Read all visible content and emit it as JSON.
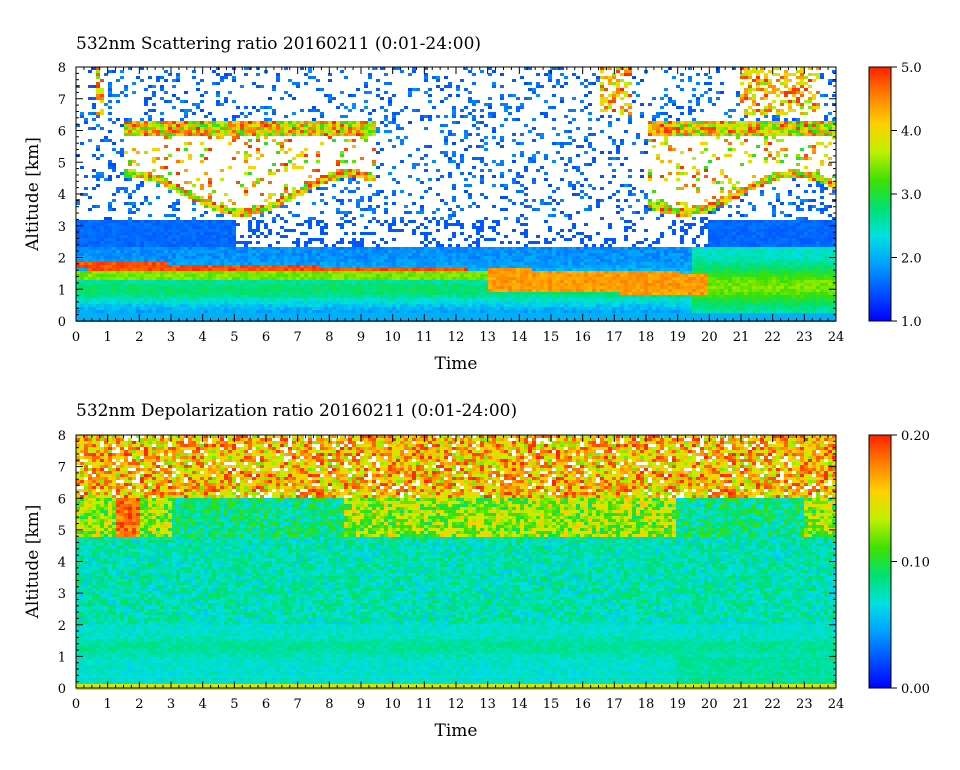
{
  "chart_data": [
    {
      "type": "heatmap",
      "title": "532nm Scattering ratio  20160211 (0:01-24:00)",
      "xlabel": "Time",
      "ylabel": "Altitude [km]",
      "xlim": [
        0,
        24
      ],
      "ylim": [
        0,
        8
      ],
      "x_ticks": [
        "0",
        "1",
        "2",
        "3",
        "4",
        "5",
        "6",
        "7",
        "8",
        "9",
        "10",
        "11",
        "12",
        "13",
        "14",
        "15",
        "16",
        "17",
        "18",
        "19",
        "20",
        "21",
        "22",
        "23",
        "24"
      ],
      "y_ticks": [
        "0",
        "1",
        "2",
        "3",
        "4",
        "5",
        "6",
        "7",
        "8"
      ],
      "colorbar": {
        "min": 1.0,
        "max": 5.0,
        "ticks": [
          "1.0",
          "2.0",
          "3.0",
          "4.0",
          "5.0"
        ]
      },
      "description_values": {
        "aerosol_layer_km": [
          0.3,
          2.0
        ],
        "cloud_layer_km": [
          3.5,
          8.0
        ]
      }
    },
    {
      "type": "heatmap",
      "title": "532nm Depolarization ratio  20160211 (0:01-24:00)",
      "xlabel": "Time",
      "ylabel": "Altitude [km]",
      "xlim": [
        0,
        24
      ],
      "ylim": [
        0,
        8
      ],
      "x_ticks": [
        "0",
        "1",
        "2",
        "3",
        "4",
        "5",
        "6",
        "7",
        "8",
        "9",
        "10",
        "11",
        "12",
        "13",
        "14",
        "15",
        "16",
        "17",
        "18",
        "19",
        "20",
        "21",
        "22",
        "23",
        "24"
      ],
      "y_ticks": [
        "0",
        "1",
        "2",
        "3",
        "4",
        "5",
        "6",
        "7",
        "8"
      ],
      "colorbar": {
        "min": 0.0,
        "max": 0.2,
        "ticks": [
          "0.00",
          "0.10",
          "0.20"
        ]
      }
    }
  ],
  "colors": {
    "scale": [
      "#0000ff",
      "#0050ff",
      "#00a0ff",
      "#00e0e0",
      "#00e070",
      "#40e000",
      "#c0f000",
      "#ffd000",
      "#ff8000",
      "#ff2000"
    ]
  }
}
